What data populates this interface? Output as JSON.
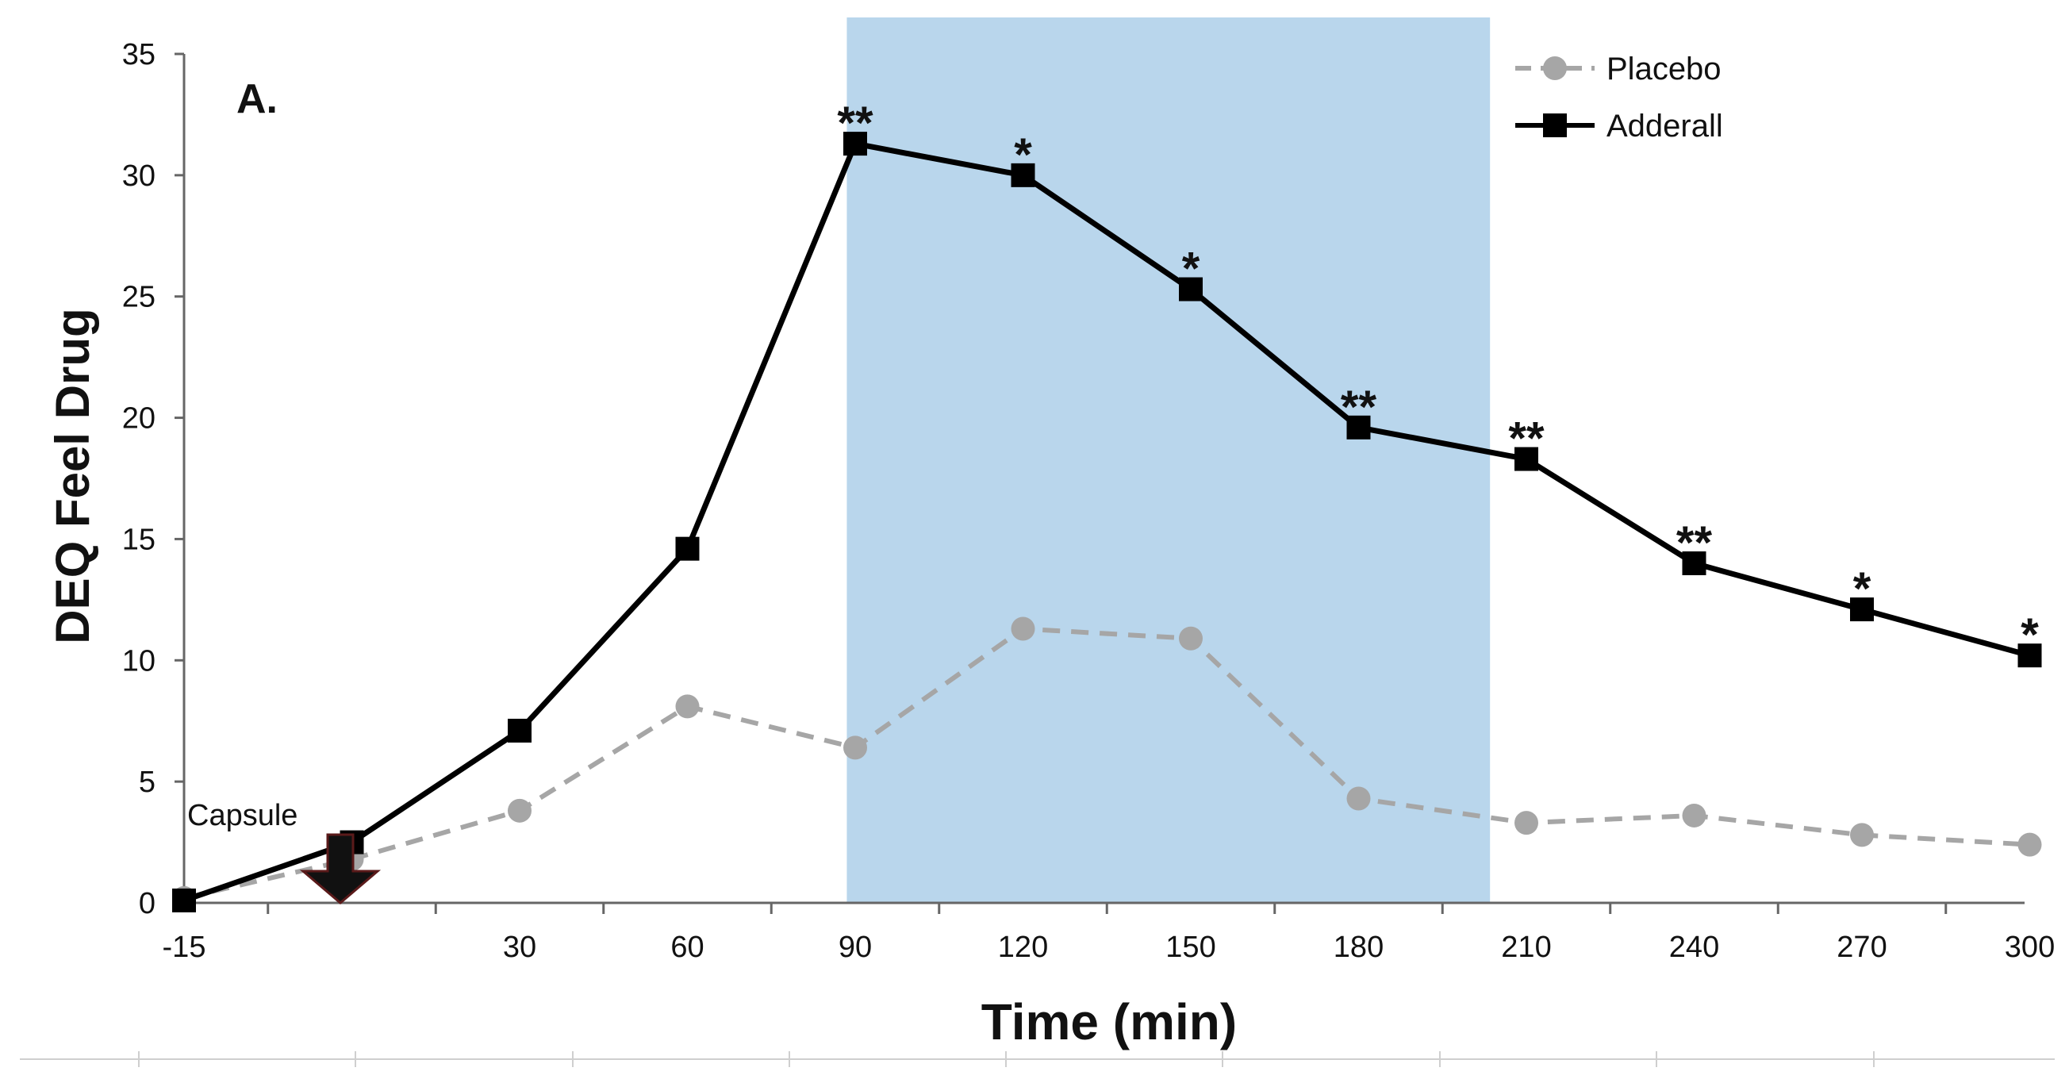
{
  "chart_data": {
    "type": "line",
    "panel_label": "A.",
    "title": "",
    "xlabel": "Time (min)",
    "ylabel": "DEQ Feel Drug",
    "ylim": [
      0,
      35
    ],
    "yticks": [
      0,
      5,
      10,
      15,
      20,
      25,
      30,
      35
    ],
    "categories": [
      "-15",
      "0",
      "30",
      "60",
      "90",
      "120",
      "150",
      "180",
      "210",
      "240",
      "270",
      "300"
    ],
    "x_tick_labels": [
      "-15",
      "",
      "30",
      "60",
      "90",
      "120",
      "150",
      "180",
      "210",
      "240",
      "270",
      "300"
    ],
    "series": [
      {
        "name": "Placebo",
        "style": "dashed",
        "marker": "circle",
        "color": "#a6a6a6",
        "values": [
          0.2,
          1.8,
          3.8,
          8.1,
          6.4,
          11.3,
          10.9,
          4.3,
          3.3,
          3.6,
          2.8,
          2.4
        ]
      },
      {
        "name": "Adderall",
        "style": "solid",
        "marker": "square",
        "color": "#000000",
        "values": [
          0.1,
          2.5,
          7.1,
          14.6,
          31.3,
          30.0,
          25.3,
          19.6,
          18.3,
          14.0,
          12.1,
          10.2
        ]
      }
    ],
    "significance": [
      {
        "category": "90",
        "label": "**"
      },
      {
        "category": "120",
        "label": "*"
      },
      {
        "category": "150",
        "label": "*"
      },
      {
        "category": "180",
        "label": "**"
      },
      {
        "category": "210",
        "label": "**"
      },
      {
        "category": "240",
        "label": "**"
      },
      {
        "category": "270",
        "label": "*"
      },
      {
        "category": "300",
        "label": "*"
      }
    ],
    "shaded_region": {
      "x_start": 88.5,
      "x_end": 203.5,
      "color": "#b9d6ec"
    },
    "annotation": {
      "text": "Capsule",
      "category": "0"
    },
    "legend": {
      "position": "top-right"
    }
  }
}
